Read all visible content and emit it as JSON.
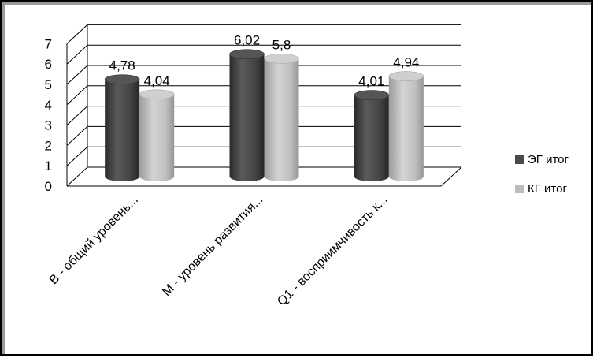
{
  "chart_data": {
    "type": "bar",
    "style": "3d-cylinder",
    "categories": [
      "В - общий уровень...",
      "М - уровень развития...",
      "Q1 - восприимчивость к..."
    ],
    "series": [
      {
        "name": "ЭГ итог",
        "values": [
          4.78,
          6.02,
          4.01
        ],
        "labels": [
          "4,78",
          "6,02",
          "4,01"
        ],
        "color": "#4a4a4a"
      },
      {
        "name": "КГ итог",
        "values": [
          4.04,
          5.8,
          4.94
        ],
        "labels": [
          "4,04",
          "5,8",
          "4,94"
        ],
        "color": "#bdbdbd"
      }
    ],
    "yticks": [
      "0",
      "1",
      "2",
      "3",
      "4",
      "5",
      "6",
      "7"
    ],
    "ylim": [
      0,
      7
    ],
    "grid": true,
    "legend_position": "right"
  },
  "colors": {
    "series_dark": "#4a4a4a",
    "series_light": "#bdbdbd",
    "frame_shadow": "#9a9a9a"
  }
}
